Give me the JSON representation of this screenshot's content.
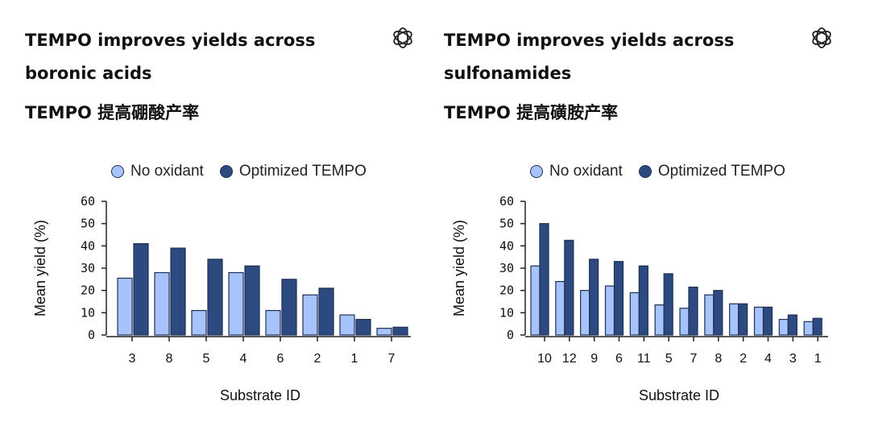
{
  "colors": {
    "no_oxidant": "#a6c3fb",
    "optimized": "#2c4a80",
    "edge": "#1f2f55"
  },
  "chart_data": [
    {
      "type": "bar",
      "title": "TEMPO improves yields across boronic acids",
      "subtitle": "TEMPO 提高硼酸产率",
      "xlabel": "Substrate ID",
      "ylabel": "Mean yield (%)",
      "ylim": [
        0,
        60
      ],
      "yticks": [
        "0",
        "10",
        "20",
        "30",
        "40",
        "50",
        "60"
      ],
      "legend_placement": "top",
      "categories": [
        "3",
        "8",
        "5",
        "4",
        "6",
        "2",
        "1",
        "7"
      ],
      "series": [
        {
          "name": "No oxidant",
          "values": [
            25.5,
            28,
            11,
            28,
            11,
            18,
            9,
            3
          ]
        },
        {
          "name": "Optimized TEMPO",
          "values": [
            41,
            39,
            34,
            31,
            25,
            21,
            7,
            3.5
          ]
        }
      ]
    },
    {
      "type": "bar",
      "title": "TEMPO improves yields across sulfonamides",
      "subtitle": "TEMPO 提高磺胺产率",
      "xlabel": "Substrate ID",
      "ylabel": "Mean yield (%)",
      "ylim": [
        0,
        60
      ],
      "yticks": [
        "0",
        "10",
        "20",
        "30",
        "40",
        "50",
        "60"
      ],
      "legend_placement": "top",
      "categories": [
        "10",
        "12",
        "9",
        "6",
        "11",
        "5",
        "7",
        "8",
        "2",
        "4",
        "3",
        "1"
      ],
      "series": [
        {
          "name": "No oxidant",
          "values": [
            31,
            24,
            20,
            22,
            19,
            13.5,
            12,
            18,
            14,
            12.5,
            7,
            6
          ]
        },
        {
          "name": "Optimized TEMPO",
          "values": [
            50,
            42.5,
            34,
            33,
            31,
            27.5,
            21.5,
            20,
            14,
            12.5,
            9,
            7.5
          ]
        }
      ]
    }
  ]
}
